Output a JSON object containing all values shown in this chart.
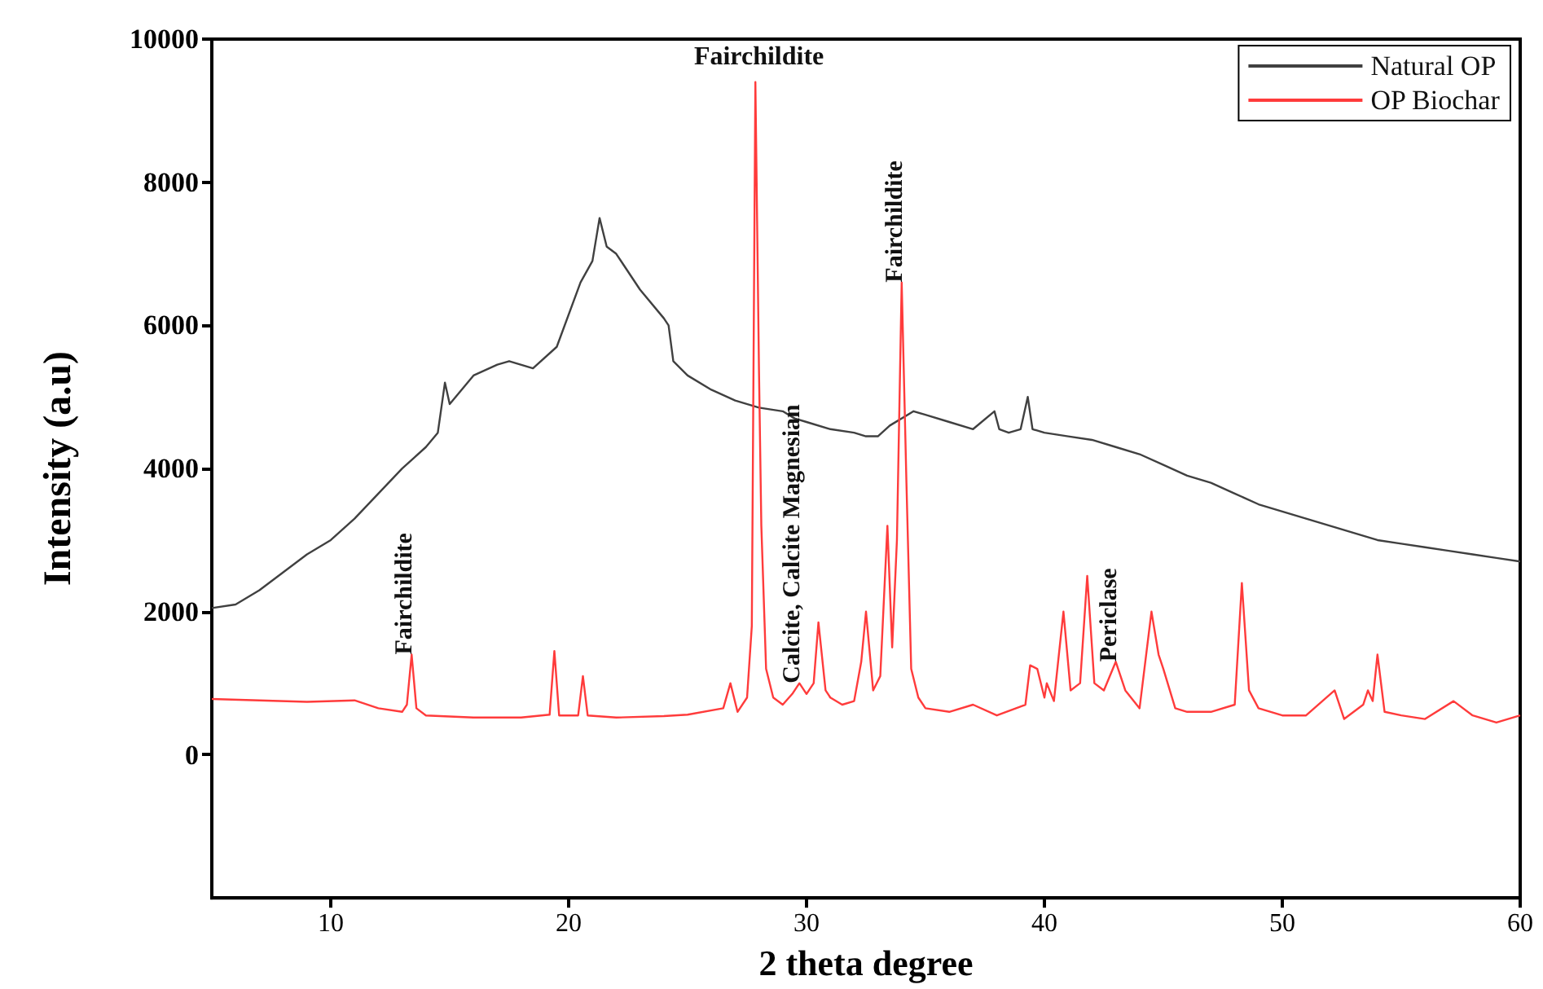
{
  "chart_data": {
    "type": "line",
    "xlabel": "2 theta degree",
    "ylabel": "Intensity (a.u)",
    "xlim": [
      5,
      60
    ],
    "xticks": [
      10,
      20,
      30,
      40,
      50,
      60
    ],
    "ylim": [
      -2000,
      10000
    ],
    "yticks": [
      0,
      2000,
      4000,
      6000,
      8000,
      10000
    ],
    "grid": false,
    "legend": "top right",
    "marker": "none",
    "line_style": "solid",
    "series": [
      {
        "name": "Natural OP",
        "color": "#404040",
        "x": [
          5,
          6,
          7,
          8,
          9,
          10,
          11,
          12,
          13,
          14,
          14.5,
          14.8,
          15,
          16,
          17,
          17.5,
          18.5,
          19.5,
          20.5,
          21,
          21.3,
          21.6,
          22,
          23,
          24,
          24.2,
          24.4,
          25,
          26,
          27,
          28,
          29,
          29.5,
          30,
          31,
          32,
          32.5,
          33,
          33.5,
          34.5,
          35,
          36,
          37,
          37.9,
          38.1,
          38.5,
          39,
          39.3,
          39.5,
          40,
          41,
          42,
          43,
          44,
          45,
          46,
          47,
          48,
          49,
          50,
          51,
          52,
          53,
          54,
          55,
          56,
          57,
          58,
          59,
          60
        ],
        "values": [
          2050,
          2100,
          2300,
          2550,
          2800,
          3000,
          3300,
          3650,
          4000,
          4300,
          4500,
          5200,
          4900,
          5300,
          5450,
          5500,
          5400,
          5700,
          6600,
          6900,
          7500,
          7100,
          7000,
          6500,
          6100,
          6000,
          5500,
          5300,
          5100,
          4950,
          4850,
          4800,
          4700,
          4650,
          4550,
          4500,
          4450,
          4450,
          4600,
          4800,
          4750,
          4650,
          4550,
          4800,
          4550,
          4500,
          4550,
          5000,
          4550,
          4500,
          4450,
          4400,
          4300,
          4200,
          4050,
          3900,
          3800,
          3650,
          3500,
          3400,
          3300,
          3200,
          3100,
          3000,
          2950,
          2900,
          2850,
          2800,
          2750,
          2700
        ]
      },
      {
        "name": "OP Biochar",
        "color": "#ff3b3b",
        "x": [
          5,
          7,
          9,
          11,
          12,
          13,
          13.2,
          13.4,
          13.6,
          14,
          16,
          18,
          19.2,
          19.4,
          19.6,
          20.4,
          20.6,
          20.8,
          22,
          24,
          25,
          26.5,
          26.8,
          27.1,
          27.5,
          27.7,
          27.85,
          28,
          28.1,
          28.3,
          28.6,
          29,
          29.4,
          29.7,
          30,
          30.3,
          30.5,
          30.8,
          31,
          31.5,
          32,
          32.3,
          32.5,
          32.8,
          33.1,
          33.4,
          33.6,
          33.8,
          34,
          34.2,
          34.4,
          34.7,
          35,
          36,
          37,
          38,
          39.2,
          39.4,
          39.7,
          40,
          40.1,
          40.4,
          40.8,
          41.1,
          41.5,
          41.8,
          42.1,
          42.5,
          43,
          43.4,
          44,
          44.5,
          44.8,
          45,
          45.5,
          46,
          47,
          48,
          48.3,
          48.6,
          49,
          50,
          51,
          52.2,
          52.6,
          53.4,
          53.6,
          53.8,
          54,
          54.3,
          55,
          56,
          57.2,
          58,
          59,
          60
        ],
        "values": [
          780,
          760,
          740,
          760,
          650,
          600,
          700,
          1400,
          650,
          550,
          520,
          520,
          560,
          1450,
          550,
          550,
          1100,
          550,
          520,
          540,
          560,
          650,
          1000,
          600,
          800,
          1800,
          9400,
          5400,
          3200,
          1200,
          800,
          700,
          850,
          1000,
          850,
          1000,
          1850,
          900,
          800,
          700,
          750,
          1300,
          2000,
          900,
          1100,
          3200,
          1500,
          3000,
          6600,
          3800,
          1200,
          800,
          650,
          600,
          700,
          550,
          700,
          1250,
          1200,
          800,
          1000,
          750,
          2000,
          900,
          1000,
          2500,
          1000,
          900,
          1300,
          900,
          650,
          2000,
          1400,
          1200,
          650,
          600,
          600,
          700,
          2400,
          900,
          650,
          550,
          550,
          900,
          500,
          700,
          900,
          750,
          1400,
          600,
          550,
          500,
          750,
          550,
          450,
          550
        ]
      }
    ],
    "annotations": [
      {
        "text": "Fairchildite",
        "x": 13.4,
        "y": 1400
      },
      {
        "text": "Fairchildite",
        "x": 28,
        "y": 9400
      },
      {
        "text": "Calcite, Calcite Magnesian",
        "x": 29.7,
        "y": 1000
      },
      {
        "text": "Fairchildite",
        "x": 34,
        "y": 6600
      },
      {
        "text": "Periclase",
        "x": 43,
        "y": 1300
      }
    ]
  }
}
